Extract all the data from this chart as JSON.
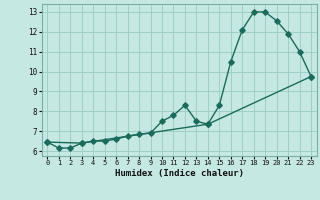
{
  "xlabel": "Humidex (Indice chaleur)",
  "background_color": "#c5e8e2",
  "grid_color": "#9fcfca",
  "line_color": "#1a6b5a",
  "xlim": [
    -0.5,
    23.5
  ],
  "ylim": [
    5.75,
    13.4
  ],
  "xticks": [
    0,
    1,
    2,
    3,
    4,
    5,
    6,
    7,
    8,
    9,
    10,
    11,
    12,
    13,
    14,
    15,
    16,
    17,
    18,
    19,
    20,
    21,
    22,
    23
  ],
  "yticks": [
    6,
    7,
    8,
    9,
    10,
    11,
    12,
    13
  ],
  "series1_x": [
    0,
    1,
    2,
    3,
    4,
    5,
    6,
    7,
    8,
    9,
    10,
    11,
    12,
    13,
    14,
    15,
    16,
    17,
    18,
    19,
    20,
    21,
    22,
    23
  ],
  "series1_y": [
    6.45,
    6.15,
    6.15,
    6.4,
    6.5,
    6.5,
    6.6,
    6.75,
    6.85,
    6.9,
    7.5,
    7.8,
    8.3,
    7.5,
    7.35,
    8.3,
    10.5,
    12.1,
    13.0,
    13.0,
    12.55,
    11.9,
    11.0,
    9.75
  ],
  "series2_x": [
    0,
    3,
    14,
    23
  ],
  "series2_y": [
    6.45,
    6.4,
    7.35,
    9.75
  ]
}
